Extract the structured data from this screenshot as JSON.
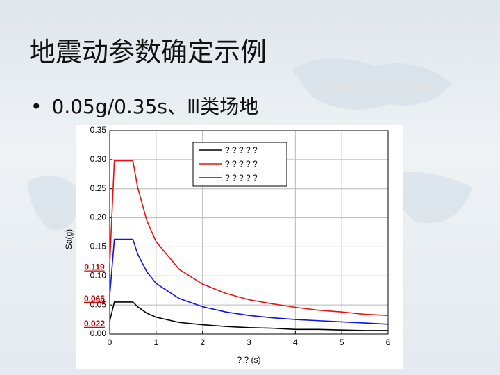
{
  "title": "地震动参数确定示例",
  "bullet": "0.05g/0.35s、Ⅲ类场地",
  "chart_data": {
    "type": "line",
    "xlabel": "? ?  (s)",
    "ylabel": "Sa(g)",
    "x": [
      0,
      0.1,
      0.5,
      0.6,
      0.8,
      1,
      1.5,
      2,
      2.5,
      3,
      3.5,
      4,
      4.5,
      5,
      5.5,
      6
    ],
    "series": [
      {
        "name": "? ? ? ? ?",
        "color": "#000000",
        "values": [
          0.022,
          0.055,
          0.055,
          0.047,
          0.036,
          0.029,
          0.02,
          0.016,
          0.013,
          0.011,
          0.01,
          0.008,
          0.008,
          0.007,
          0.006,
          0.006
        ]
      },
      {
        "name": "? ? ? ? ?",
        "color": "#e81010",
        "values": [
          0.119,
          0.298,
          0.298,
          0.253,
          0.195,
          0.159,
          0.111,
          0.086,
          0.07,
          0.059,
          0.052,
          0.046,
          0.041,
          0.038,
          0.034,
          0.032
        ]
      },
      {
        "name": "? ? ? ? ?",
        "color": "#1010e8",
        "values": [
          0.065,
          0.163,
          0.163,
          0.138,
          0.107,
          0.087,
          0.061,
          0.047,
          0.038,
          0.032,
          0.028,
          0.025,
          0.023,
          0.021,
          0.019,
          0.017
        ]
      }
    ],
    "annotations": [
      "0.022",
      "0.119",
      "0.065"
    ],
    "xlim": [
      0,
      6
    ],
    "xticks": [
      0,
      1,
      2,
      3,
      4,
      5,
      6
    ],
    "ylim": [
      0,
      0.35
    ],
    "yticks": [
      {
        "value": 0,
        "label": "0.00"
      },
      0.05,
      {
        "value": 0.1,
        "label": "0.10"
      },
      0.15,
      {
        "value": 0.2,
        "label": "0.20"
      },
      0.25,
      {
        "value": 0.3,
        "label": "0.30"
      },
      0.35
    ],
    "grid": true,
    "legend": "upper center"
  }
}
